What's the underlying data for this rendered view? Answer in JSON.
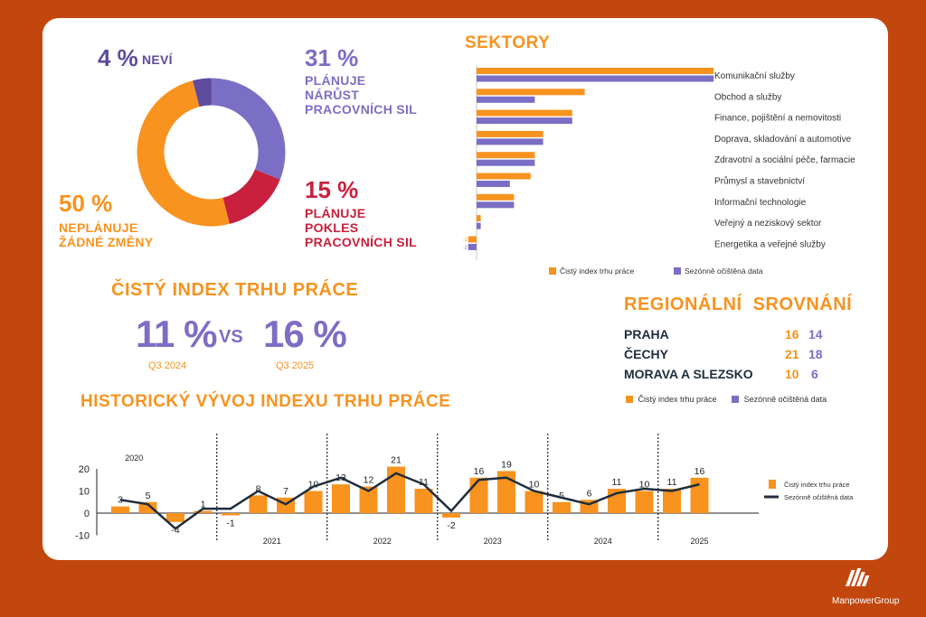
{
  "donut": {
    "nevi": {
      "pct": "4 %",
      "label": "NEVÍ"
    },
    "narust": {
      "pct": "31 %",
      "label": [
        "PLÁNUJE",
        "NÁRŮST",
        "PRACOVNÍCH SIL"
      ]
    },
    "pokles": {
      "pct": "15 %",
      "label": [
        "PLÁNUJE",
        "POKLES",
        "PRACOVNÍCH SIL"
      ]
    },
    "zadne": {
      "pct": "50 %",
      "label": [
        "NEPLÁNUJE",
        "ŽÁDNÉ ZMĚNY"
      ]
    }
  },
  "sektory": {
    "title": "SEKTORY"
  },
  "index": {
    "title": "ČISTÝ INDEX TRHU PRÁCE",
    "left_value": "11 %",
    "left_period": "Q3 2024",
    "vs": "VS",
    "right_value": "16 %",
    "right_period": "Q3 2025"
  },
  "regional": {
    "title": "REGIONÁLNÍ  SROVNÁNÍ",
    "rows": [
      {
        "name": "PRAHA",
        "v1": "16",
        "v2": "14"
      },
      {
        "name": "ČECHY",
        "v1": "21",
        "v2": "18"
      },
      {
        "name": "MORAVA A SLEZSKO",
        "v1": "10",
        "v2": "6"
      }
    ],
    "legend": [
      "Čistý index trhu práce",
      "Sezónně očištěná data"
    ]
  },
  "historic": {
    "title": "HISTORICKÝ VÝVOJ INDEXU TRHU PRÁCE"
  },
  "logo": {
    "text": "ManpowerGroup"
  },
  "colors": {
    "orange": "#f7931e",
    "purple": "#7a6fc4",
    "red": "#c8203d",
    "navy": "#1f2d3d",
    "bg": "#c2470f"
  },
  "chart_data": [
    {
      "type": "pie",
      "categories": [
        "PLÁNUJE NÁRŮST PRACOVNÍCH SIL",
        "PLÁNUJE POKLES PRACOVNÍCH SIL",
        "NEPLÁNUJE ŽÁDNÉ ZMĚNY",
        "NEVÍ"
      ],
      "values": [
        31,
        15,
        50,
        4
      ],
      "colors": [
        "#7a6fc4",
        "#c8203d",
        "#f7931e",
        "#5e4b9e"
      ]
    },
    {
      "type": "bar",
      "orientation": "horizontal",
      "categories": [
        "Komunikační služby",
        "Obchod a služby",
        "Finance, pojištění a nemovitosti",
        "Doprava, skladování a automotive",
        "Zdravotní a sociální péče, farmacie",
        "Průmysl a stavebnictví",
        "Informační technologie",
        "Veřejný a neziskový sektor",
        "Energetika a veřejné služby"
      ],
      "series": [
        {
          "name": "Čistý index trhu práce",
          "values": [
            57,
            26,
            23,
            16,
            14,
            13,
            9,
            1,
            -2
          ]
        },
        {
          "name": "Sezónně očištěná data",
          "values": [
            57,
            14,
            23,
            16,
            14,
            8,
            9,
            1,
            -2
          ]
        }
      ],
      "xlim": [
        -2,
        57
      ],
      "legend_position": "bottom"
    },
    {
      "type": "bar",
      "categories": [
        "2020",
        "",
        "",
        "",
        "2021",
        "",
        "",
        "",
        "2022",
        "",
        "",
        "",
        "2023",
        "",
        "",
        "",
        "2024",
        "",
        "",
        "",
        "2025",
        ""
      ],
      "year_labels": [
        "2020",
        "2021",
        "2022",
        "2023",
        "2024",
        "2025"
      ],
      "series": [
        {
          "name": "Čistý index trhu práce",
          "values": [
            3,
            5,
            -4,
            1,
            -1,
            8,
            7,
            10,
            13,
            12,
            21,
            11,
            -2,
            16,
            19,
            10,
            5,
            6,
            11,
            10,
            11,
            16
          ]
        },
        {
          "name": "Sezónně očištěná data",
          "values": [
            6,
            4,
            -7,
            2,
            2,
            10,
            4,
            12,
            16,
            10,
            18,
            13,
            1,
            15,
            16,
            10,
            7,
            4,
            9,
            11,
            10,
            13
          ]
        }
      ],
      "bar_labels": [
        "3",
        "5",
        "-4",
        "1",
        "-1",
        "8",
        "7",
        "10",
        "13",
        "12",
        "21",
        "11",
        "-2",
        "16",
        "19",
        "10",
        "5",
        "6",
        "11",
        "10",
        "11",
        "16"
      ],
      "yticks": [
        "20",
        "10",
        "0",
        "-10"
      ],
      "ylim": [
        -10,
        22
      ],
      "legend_position": "right"
    }
  ]
}
